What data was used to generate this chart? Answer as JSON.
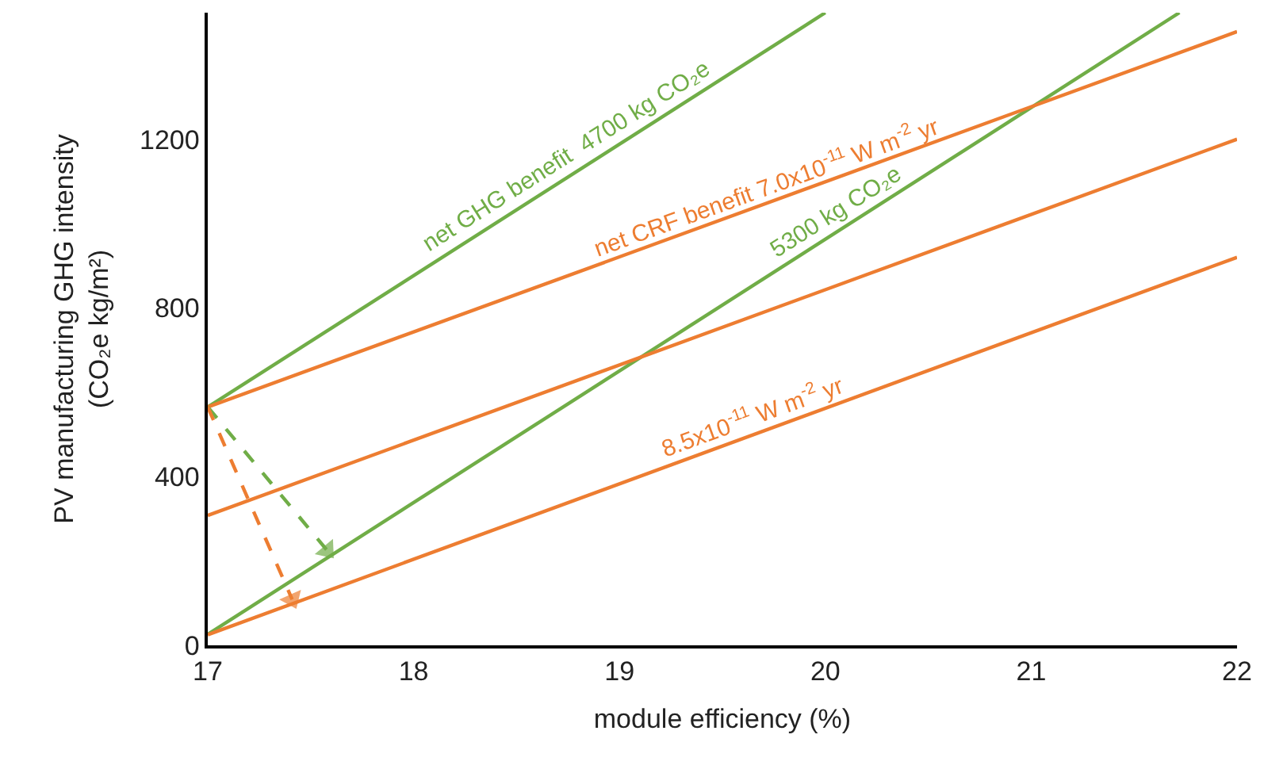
{
  "chart_data": {
    "type": "line",
    "xlabel": "module efficiency (%)",
    "ylabel": "PV manufacturing GHG intensity\n(CO₂e kg/m²)",
    "xlim": [
      17,
      22
    ],
    "xticks": [
      17,
      18,
      19,
      20,
      21,
      22
    ],
    "ylim": [
      0,
      1500
    ],
    "yticks": [
      0,
      400,
      800,
      1200
    ],
    "marker": "none",
    "series": [
      {
        "color": "#70ad47",
        "x": [
          17,
          20
        ],
        "values": [
          565,
          1500
        ]
      },
      {
        "color": "#70ad47",
        "x": [
          17,
          21.72
        ],
        "values": [
          26,
          1500
        ]
      },
      {
        "color": "#ed7d31",
        "x": [
          17,
          22
        ],
        "values": [
          565,
          1455
        ]
      },
      {
        "color": "#ed7d31",
        "x": [
          17,
          22
        ],
        "values": [
          308,
          1200
        ]
      },
      {
        "color": "#ed7d31",
        "x": [
          17,
          22
        ],
        "values": [
          25,
          920
        ]
      },
      {
        "color": "#70ad47",
        "x": [
          17,
          17.58
        ],
        "values": [
          565,
          225
        ],
        "line_style": "dashed",
        "marker": "triangle"
      },
      {
        "color": "#ed7d31",
        "x": [
          17,
          17.41
        ],
        "values": [
          565,
          109
        ],
        "line_style": "dashed",
        "marker": "triangle"
      }
    ],
    "annotations": [
      {
        "text": "net GHG benefit  4700 kg CO₂e",
        "x": 18.79,
        "y": 1123
      },
      {
        "text": "net CRF benefit 7.0x10$^{-11}$ W m$^{-2}$ yr",
        "x": 19.74,
        "y": 1050
      },
      {
        "text": "5300 kg CO₂e",
        "x": 20.1,
        "y": 993
      },
      {
        "text": "8.5x10$^{-11}$ W m$^{-2}$ yr",
        "x": 19.67,
        "y": 503
      }
    ]
  }
}
